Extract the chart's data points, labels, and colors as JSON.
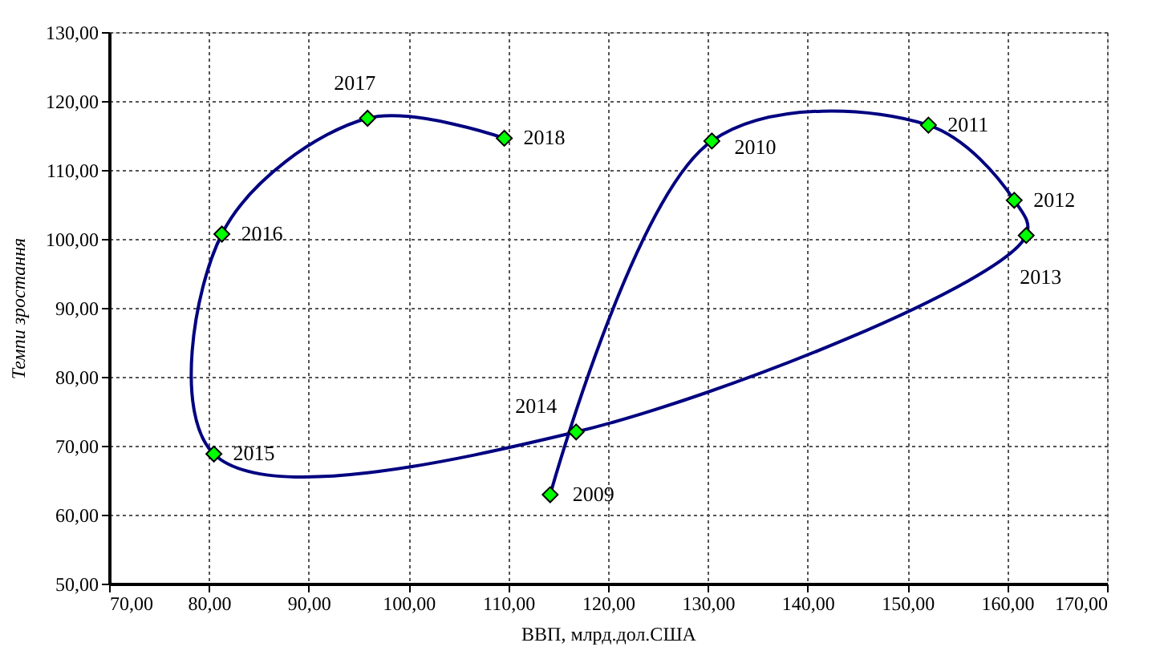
{
  "chart_data": {
    "type": "line",
    "xlabel": "ВВП, млрд.дол.США",
    "ylabel": "Темпи зростання",
    "x": [
      114.2,
      130.4,
      152.1,
      160.7,
      161.9,
      116.8,
      80.5,
      81.3,
      95.9,
      109.6
    ],
    "series": [
      {
        "color": "#000080",
        "values": [
          62.9,
          114.2,
          116.5,
          105.6,
          100.5,
          72.0,
          68.8,
          100.7,
          117.5,
          114.6
        ]
      }
    ],
    "marker": "diamond",
    "grid": true,
    "xlim": [
      70,
      170
    ],
    "ylim": [
      50,
      130
    ],
    "xticks": [
      {
        "value": 70,
        "label": "70,00"
      },
      {
        "value": 80,
        "label": "80,00"
      },
      {
        "value": 90,
        "label": "90,00"
      },
      {
        "value": 100,
        "label": "100,00"
      },
      {
        "value": 110,
        "label": "110,00"
      },
      {
        "value": 120,
        "label": "120,00"
      },
      {
        "value": 130,
        "label": "130,00"
      },
      {
        "value": 140,
        "label": "140,00"
      },
      {
        "value": 150,
        "label": "150,00"
      },
      {
        "value": 160,
        "label": "160,00"
      },
      {
        "value": 170,
        "label": "170,00"
      }
    ],
    "yticks": [
      {
        "value": 50,
        "label": "50,00"
      },
      {
        "value": 60,
        "label": "60,00"
      },
      {
        "value": 70,
        "label": "70,00"
      },
      {
        "value": 80,
        "label": "80,00"
      },
      {
        "value": 90,
        "label": "90,00"
      },
      {
        "value": 100,
        "label": "100,00"
      },
      {
        "value": 110,
        "label": "110,00"
      },
      {
        "value": 120,
        "label": "120,00"
      },
      {
        "value": 130,
        "label": "130,00"
      }
    ],
    "annotations": [
      {
        "text": "2009",
        "x": 114.2,
        "y": 62.9
      },
      {
        "text": "2010",
        "x": 130.4,
        "y": 114.2
      },
      {
        "text": "2011",
        "x": 152.1,
        "y": 116.5
      },
      {
        "text": "2012",
        "x": 160.7,
        "y": 105.6
      },
      {
        "text": "2013",
        "x": 161.9,
        "y": 100.5
      },
      {
        "text": "2014",
        "x": 116.8,
        "y": 72.0
      },
      {
        "text": "2015",
        "x": 80.5,
        "y": 68.8
      },
      {
        "text": "2016",
        "x": 81.3,
        "y": 100.7
      },
      {
        "text": "2017",
        "x": 95.9,
        "y": 117.5
      },
      {
        "text": "2018",
        "x": 109.6,
        "y": 114.6
      }
    ]
  }
}
